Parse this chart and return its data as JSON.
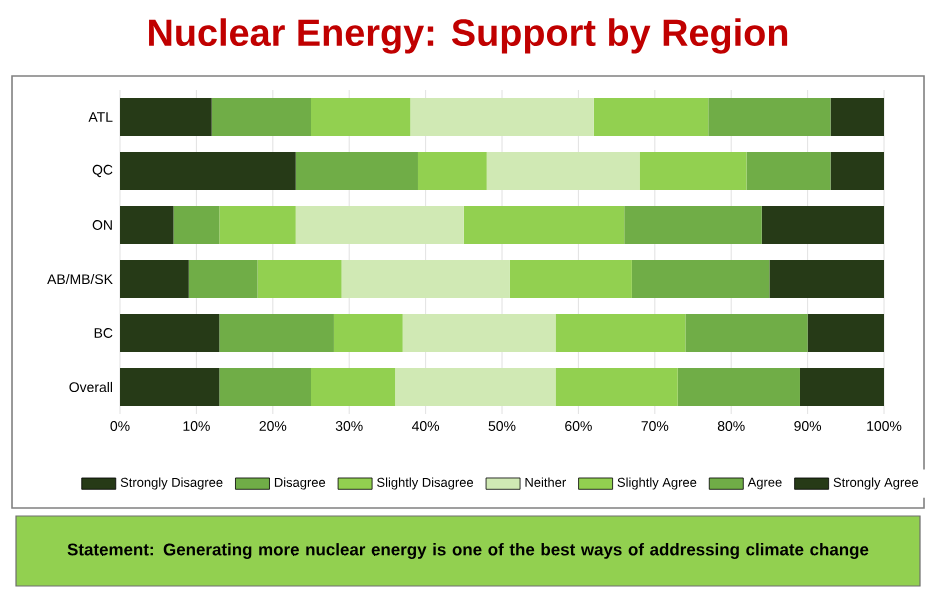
{
  "chart_data": {
    "type": "bar",
    "orientation": "horizontal",
    "stacked": true,
    "title": "Nuclear Energy: Support by Region",
    "categories": [
      "ATL",
      "QC",
      "ON",
      "AB/MB/SK",
      "BC",
      "Overall"
    ],
    "series": [
      {
        "name": "Strongly Disagree",
        "color": "#263a17",
        "values": [
          12,
          23,
          7,
          9,
          13,
          13
        ]
      },
      {
        "name": "Disagree",
        "color": "#70ad47",
        "values": [
          13,
          16,
          6,
          9,
          15,
          12
        ]
      },
      {
        "name": "Slightly Disagree",
        "color": "#92d050",
        "values": [
          13,
          9,
          10,
          11,
          9,
          11
        ]
      },
      {
        "name": "Neither",
        "color": "#d0e9b4",
        "values": [
          24,
          20,
          22,
          22,
          20,
          21
        ]
      },
      {
        "name": "Slightly Agree",
        "color": "#92d050",
        "values": [
          15,
          14,
          21,
          16,
          17,
          16
        ]
      },
      {
        "name": "Agree",
        "color": "#70ad47",
        "values": [
          16,
          11,
          18,
          18,
          16,
          16
        ]
      },
      {
        "name": "Strongly Agree",
        "color": "#263a17",
        "values": [
          7,
          7,
          16,
          15,
          10,
          11
        ]
      }
    ],
    "xlim": [
      0,
      100
    ],
    "xticks": [
      {
        "value": 0,
        "label": "0%"
      },
      {
        "value": 10,
        "label": "10%"
      },
      {
        "value": 20,
        "label": "20%"
      },
      {
        "value": 30,
        "label": "30%"
      },
      {
        "value": 40,
        "label": "40%"
      },
      {
        "value": 50,
        "label": "50%"
      },
      {
        "value": 60,
        "label": "60%"
      },
      {
        "value": 70,
        "label": "70%"
      },
      {
        "value": 80,
        "label": "80%"
      },
      {
        "value": 90,
        "label": "90%"
      },
      {
        "value": 100,
        "label": "100%"
      }
    ],
    "grid": "x",
    "legend": "bottom",
    "annotations": [
      "Statement: Generating more nuclear energy is one of the best ways of addressing climate change"
    ]
  }
}
